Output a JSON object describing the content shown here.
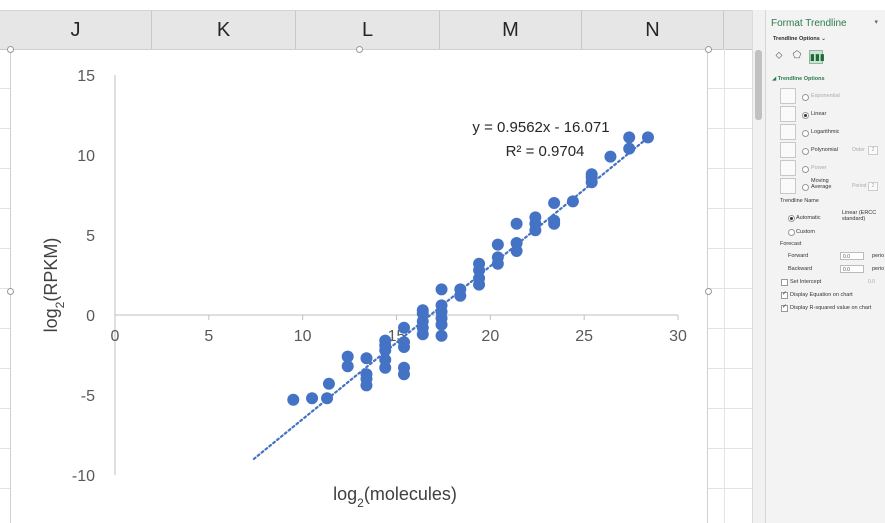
{
  "spreadsheet": {
    "columns": [
      "J",
      "K",
      "L",
      "M",
      "N"
    ]
  },
  "chart_data": {
    "type": "scatter",
    "title": "",
    "xlabel": "log2(molecules)",
    "ylabel": "log2(RPKM)",
    "xlim": [
      0,
      30
    ],
    "ylim": [
      -10,
      15
    ],
    "x_ticks": [
      "0",
      "5",
      "10",
      "15",
      "20",
      "25",
      "30"
    ],
    "y_ticks": [
      "15",
      "10",
      "5",
      "0",
      "-5",
      "-10"
    ],
    "series": [
      {
        "name": "",
        "color": "#4472c4",
        "points": [
          [
            9.5,
            -5.3
          ],
          [
            10.5,
            -5.2
          ],
          [
            11.3,
            -5.2
          ],
          [
            11.4,
            -4.3
          ],
          [
            12.4,
            -3.2
          ],
          [
            12.4,
            -2.6
          ],
          [
            13.4,
            -4.4
          ],
          [
            13.4,
            -4.0
          ],
          [
            13.4,
            -3.7
          ],
          [
            13.4,
            -2.7
          ],
          [
            14.4,
            -3.3
          ],
          [
            14.4,
            -2.8
          ],
          [
            14.4,
            -2.2
          ],
          [
            14.4,
            -1.9
          ],
          [
            14.4,
            -1.6
          ],
          [
            15.4,
            -3.7
          ],
          [
            15.4,
            -3.3
          ],
          [
            15.4,
            -2.0
          ],
          [
            15.4,
            -1.7
          ],
          [
            15.4,
            -0.8
          ],
          [
            16.4,
            -1.2
          ],
          [
            16.4,
            -0.8
          ],
          [
            16.4,
            -0.4
          ],
          [
            16.4,
            0.1
          ],
          [
            16.4,
            0.3
          ],
          [
            17.4,
            -1.3
          ],
          [
            17.4,
            -0.6
          ],
          [
            17.4,
            -0.2
          ],
          [
            17.4,
            0.2
          ],
          [
            17.4,
            0.6
          ],
          [
            17.4,
            1.6
          ],
          [
            18.4,
            1.2
          ],
          [
            18.4,
            1.6
          ],
          [
            19.4,
            1.9
          ],
          [
            19.4,
            2.3
          ],
          [
            19.4,
            2.8
          ],
          [
            19.4,
            3.2
          ],
          [
            20.4,
            3.2
          ],
          [
            20.4,
            3.6
          ],
          [
            20.4,
            4.4
          ],
          [
            21.4,
            4.0
          ],
          [
            21.4,
            4.5
          ],
          [
            21.4,
            5.7
          ],
          [
            22.4,
            5.3
          ],
          [
            22.4,
            5.7
          ],
          [
            22.4,
            6.1
          ],
          [
            23.4,
            5.7
          ],
          [
            23.4,
            5.9
          ],
          [
            23.4,
            7.0
          ],
          [
            24.4,
            7.1
          ],
          [
            25.4,
            8.3
          ],
          [
            25.4,
            8.6
          ],
          [
            25.4,
            8.8
          ],
          [
            26.4,
            9.9
          ],
          [
            27.4,
            10.4
          ],
          [
            27.4,
            11.1
          ],
          [
            28.4,
            11.1
          ]
        ]
      }
    ],
    "trendline": {
      "type": "linear",
      "slope": 0.9562,
      "intercept": -16.071,
      "x_range": [
        7.4,
        28.4
      ],
      "equation": "y = 0.9562x - 16.071",
      "r_squared": "R² = 0.9704"
    }
  },
  "format_pane": {
    "title": "Format Trendline",
    "subtitle": "Trendline Options ⌄",
    "section": "Trendline Options",
    "options": [
      {
        "label": "Exponential",
        "selected": false,
        "enabled": false
      },
      {
        "label": "Linear",
        "selected": true,
        "enabled": true
      },
      {
        "label": "Logarithmic",
        "selected": false,
        "enabled": true
      },
      {
        "label": "Polynomial",
        "selected": false,
        "enabled": true,
        "extra_label": "Order",
        "extra_value": "2"
      },
      {
        "label": "Power",
        "selected": false,
        "enabled": false
      },
      {
        "label": "Moving Average",
        "selected": false,
        "enabled": true,
        "extra_label": "Period",
        "extra_value": "2"
      }
    ],
    "trendline_name": {
      "heading": "Trendline Name",
      "automatic_label": "Automatic",
      "automatic_value": "Linear (ERCC standard)",
      "custom_label": "Custom"
    },
    "forecast": {
      "heading": "Forecast",
      "forward_label": "Forward",
      "forward_value": "0.0",
      "backward_label": "Backward",
      "backward_value": "0.0",
      "unit": "perio"
    },
    "set_intercept_label": "Set Intercept",
    "set_intercept_value": "0.0",
    "display_equation_label": "Display Equation on chart",
    "display_rsquared_label": "Display R-squared value on chart"
  }
}
